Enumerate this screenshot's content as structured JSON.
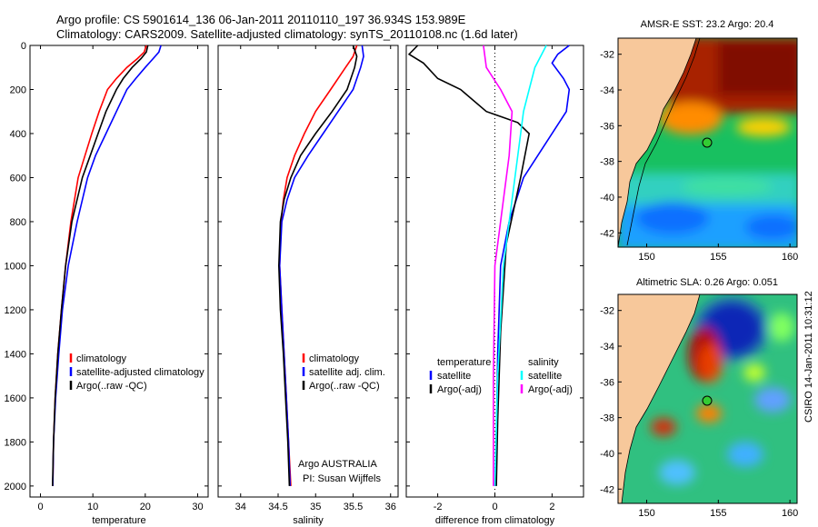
{
  "header": {
    "line1": "Argo profile: CS 5901614_136 06-Jan-2011 20110110_197 36.934S 153.989E",
    "line2": "Climatology: CARS2009. Satellite-adjusted climatology: synTS_20110108.nc (1.6d later)"
  },
  "colors": {
    "climatology": "#ff0000",
    "satellite": "#0000ff",
    "argo": "#000000",
    "sat_cyan": "#00ffff",
    "argo_adj_magenta": "#ff00ff",
    "land": "#f7c89b"
  },
  "chart_data": [
    {
      "type": "line",
      "xlabel": "temperature",
      "xlim": [
        -2,
        32
      ],
      "ylim": [
        2050,
        0
      ],
      "xticks": [
        "0",
        "10",
        "20",
        "30"
      ],
      "yticks": [
        "0",
        "200",
        "400",
        "600",
        "800",
        "1000",
        "1200",
        "1400",
        "1600",
        "1800",
        "2000"
      ],
      "legend": [
        "climatology",
        "satellite-adjusted climatology",
        "Argo(..raw -QC)"
      ],
      "series": [
        {
          "name": "climatology",
          "color": "#ff0000",
          "x": [
            20.2,
            19.8,
            18.5,
            16.5,
            14.5,
            12.8,
            11.2,
            9.8,
            8.5,
            7.2,
            5.8,
            4.8,
            4.0,
            3.3,
            2.8,
            2.5,
            2.35
          ],
          "y": [
            0,
            30,
            60,
            100,
            150,
            200,
            300,
            400,
            500,
            600,
            800,
            1000,
            1200,
            1400,
            1600,
            1800,
            2000
          ]
        },
        {
          "name": "satellite-adjusted climatology",
          "color": "#0000ff",
          "x": [
            23.0,
            22.6,
            21.5,
            20.0,
            18.2,
            16.5,
            14.5,
            12.5,
            10.5,
            9.0,
            7.0,
            5.3,
            4.2,
            3.5,
            2.9,
            2.5,
            2.35
          ],
          "y": [
            0,
            30,
            60,
            100,
            150,
            200,
            300,
            400,
            500,
            600,
            800,
            1000,
            1200,
            1400,
            1600,
            1800,
            2000
          ]
        },
        {
          "name": "Argo(..raw -QC)",
          "color": "#000000",
          "x": [
            20.5,
            20.2,
            19.2,
            17.5,
            15.8,
            14.5,
            12.5,
            11.0,
            9.5,
            8.0,
            6.0,
            4.8,
            4.0,
            3.3,
            2.8,
            2.5,
            2.3
          ],
          "y": [
            0,
            30,
            60,
            100,
            150,
            200,
            300,
            400,
            500,
            600,
            800,
            1000,
            1200,
            1400,
            1600,
            1800,
            2000
          ]
        }
      ]
    },
    {
      "type": "line",
      "xlabel": "salinity",
      "xlim": [
        33.7,
        36.1
      ],
      "ylim": [
        2050,
        0
      ],
      "xticks": [
        "34",
        "34.5",
        "35",
        "35.5",
        "36"
      ],
      "legend": [
        "climatology",
        "satellite adj. clim.",
        "Argo(..raw -QC)"
      ],
      "series": [
        {
          "name": "climatology",
          "color": "#ff0000",
          "x": [
            35.55,
            35.5,
            35.4,
            35.2,
            35.0,
            34.85,
            34.72,
            34.62,
            34.57,
            34.54,
            34.52,
            34.55,
            34.58,
            34.61,
            34.64,
            34.67
          ],
          "y": [
            0,
            50,
            100,
            200,
            300,
            400,
            500,
            600,
            700,
            800,
            1000,
            1200,
            1400,
            1600,
            1800,
            2000
          ]
        },
        {
          "name": "satellite adj. clim.",
          "color": "#0000ff",
          "x": [
            35.62,
            35.64,
            35.6,
            35.5,
            35.3,
            35.1,
            34.9,
            34.72,
            34.62,
            34.55,
            34.52,
            34.55,
            34.58,
            34.61,
            34.64,
            34.66
          ],
          "y": [
            0,
            50,
            100,
            200,
            300,
            400,
            500,
            600,
            700,
            800,
            1000,
            1200,
            1400,
            1600,
            1800,
            2000
          ]
        },
        {
          "name": "Argo(..raw -QC)",
          "color": "#000000",
          "x": [
            35.5,
            35.55,
            35.52,
            35.42,
            35.22,
            35.0,
            34.8,
            34.67,
            34.58,
            34.53,
            34.51,
            34.53,
            34.57,
            34.6,
            34.63,
            34.65
          ],
          "y": [
            0,
            50,
            100,
            200,
            300,
            400,
            500,
            600,
            700,
            800,
            1000,
            1200,
            1400,
            1600,
            1800,
            2000
          ]
        }
      ]
    },
    {
      "type": "line",
      "xlabel": "difference from climatology",
      "xlim": [
        -3.1,
        3.1
      ],
      "ylim": [
        2050,
        0
      ],
      "xticks": [
        "-2",
        "0",
        "2"
      ],
      "legend": [
        "temperature",
        "satellite",
        "Argo(-adj)",
        "salinity",
        "satellite",
        "Argo(-adj)"
      ],
      "series": [
        {
          "name": "satellite",
          "color": "#0000ff",
          "x": [
            2.6,
            2.2,
            2.0,
            2.4,
            2.6,
            2.5,
            1.5,
            1.0,
            0.5,
            0.2,
            0.1,
            0.05,
            0.0
          ],
          "y": [
            0,
            40,
            80,
            150,
            200,
            300,
            500,
            600,
            800,
            1000,
            1400,
            1800,
            2000
          ]
        },
        {
          "name": "Argo(-adj)",
          "color": "#000000",
          "x": [
            -2.7,
            -3.0,
            -2.5,
            -2.0,
            -1.2,
            -0.3,
            0.8,
            1.2,
            0.9,
            0.4,
            0.2,
            0.1,
            0.05
          ],
          "y": [
            0,
            40,
            80,
            150,
            200,
            300,
            350,
            400,
            600,
            900,
            1300,
            1700,
            2000
          ]
        },
        {
          "name": "satellite",
          "color": "#00ffff",
          "x": [
            1.8,
            1.4,
            1.2,
            1.0,
            0.8,
            0.6,
            0.3,
            0.1,
            0.0
          ],
          "y": [
            0,
            100,
            200,
            300,
            500,
            700,
            1000,
            1500,
            2000
          ]
        },
        {
          "name": "Argo(-adj)",
          "color": "#ff00ff",
          "x": [
            -0.4,
            -0.3,
            0.2,
            0.6,
            0.5,
            0.3,
            0.0,
            -0.05,
            -0.05
          ],
          "y": [
            0,
            100,
            200,
            300,
            500,
            700,
            1000,
            1500,
            2000
          ]
        }
      ]
    }
  ],
  "maps": [
    {
      "title": "AMSR-E SST: 23.2 Argo: 20.4",
      "xticks": [
        "150",
        "155",
        "160"
      ],
      "yticks": [
        "-32",
        "-34",
        "-36",
        "-38",
        "-40",
        "-42"
      ]
    },
    {
      "title": "Altimetric SLA: 0.26 Argo: 0.051",
      "xticks": [
        "150",
        "155",
        "160"
      ],
      "yticks": [
        "-32",
        "-34",
        "-36",
        "-38",
        "-40",
        "-42"
      ]
    }
  ],
  "footer": {
    "credit_lines": [
      "Argo AUSTRALIA",
      "PI: Susan Wijffels"
    ],
    "timestamp": "CSIRO 14-Jan-2011 10:31:12"
  }
}
